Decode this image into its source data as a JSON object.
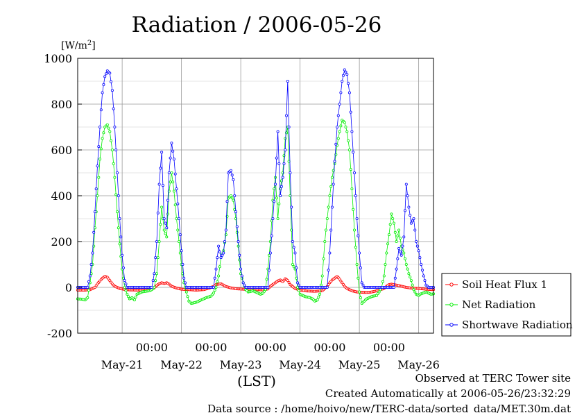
{
  "chart_data": {
    "type": "line",
    "title": "Radiation / 2006-05-26",
    "ylabel": "[W/m2]",
    "ylabel_base": "[W/m",
    "ylabel_sup": "2",
    "ylabel_end": "]",
    "xlabel": "(LST)",
    "ylim": [
      -200,
      1000
    ],
    "yticks": [
      -200,
      0,
      200,
      400,
      600,
      800,
      1000
    ],
    "xlim": [
      0,
      144
    ],
    "x_unit": "hours since 2006-05-20 00:00 LST",
    "grid": true,
    "legend_position": "bottom-right outside plot",
    "x_tick_labels": [
      {
        "x": 36,
        "time": "00:00",
        "day": "May-21"
      },
      {
        "x": 60,
        "time": "00:00",
        "day": "May-22"
      },
      {
        "x": 84,
        "time": "00:00",
        "day": "May-23"
      },
      {
        "x": 108,
        "time": "00:00",
        "day": "May-24"
      },
      {
        "x": 132,
        "time": "00:00",
        "day": "May-25"
      },
      {
        "x": 156,
        "time": "00:00",
        "day": "May-26"
      }
    ],
    "series": [
      {
        "name": "Soil Heat Flux 1",
        "color": "#ff0000",
        "marker": "circle",
        "points": [
          [
            0,
            -12
          ],
          [
            3,
            -12
          ],
          [
            5,
            -10
          ],
          [
            7,
            0
          ],
          [
            8,
            15
          ],
          [
            9,
            28
          ],
          [
            10,
            40
          ],
          [
            11,
            48
          ],
          [
            12,
            44
          ],
          [
            13,
            30
          ],
          [
            14,
            15
          ],
          [
            15,
            5
          ],
          [
            17,
            -5
          ],
          [
            19,
            -9
          ],
          [
            21,
            -11
          ],
          [
            24,
            -12
          ],
          [
            27,
            -12
          ],
          [
            30,
            -9
          ],
          [
            31,
            -2
          ],
          [
            32,
            8
          ],
          [
            33,
            16
          ],
          [
            34,
            20
          ],
          [
            35,
            17
          ],
          [
            36,
            20
          ],
          [
            37,
            14
          ],
          [
            38,
            5
          ],
          [
            40,
            -3
          ],
          [
            42,
            -8
          ],
          [
            45,
            -10
          ],
          [
            48,
            -12
          ],
          [
            51,
            -10
          ],
          [
            53,
            -4
          ],
          [
            55,
            4
          ],
          [
            56,
            12
          ],
          [
            58,
            16
          ],
          [
            59,
            10
          ],
          [
            60,
            4
          ],
          [
            62,
            -2
          ],
          [
            64,
            -6
          ],
          [
            67,
            -8
          ],
          [
            70,
            -10
          ],
          [
            72,
            -10
          ],
          [
            75,
            -11
          ],
          [
            77,
            -7
          ],
          [
            78,
            5
          ],
          [
            80,
            20
          ],
          [
            81,
            28
          ],
          [
            82,
            32
          ],
          [
            83,
            25
          ],
          [
            84,
            38
          ],
          [
            85,
            30
          ],
          [
            86,
            12
          ],
          [
            88,
            -5
          ],
          [
            90,
            -12
          ],
          [
            93,
            -16
          ],
          [
            96,
            -17
          ],
          [
            99,
            -15
          ],
          [
            100,
            -5
          ],
          [
            101,
            5
          ],
          [
            102,
            20
          ],
          [
            103,
            32
          ],
          [
            104,
            40
          ],
          [
            105,
            48
          ],
          [
            106,
            36
          ],
          [
            107,
            20
          ],
          [
            108,
            5
          ],
          [
            109,
            -5
          ],
          [
            111,
            -15
          ],
          [
            113,
            -20
          ],
          [
            116,
            -22
          ],
          [
            118,
            -22
          ],
          [
            120,
            -18
          ],
          [
            122,
            -12
          ],
          [
            124,
            -5
          ],
          [
            125,
            5
          ],
          [
            126,
            12
          ],
          [
            127,
            14
          ],
          [
            129,
            10
          ],
          [
            131,
            5
          ],
          [
            133,
            0
          ],
          [
            135,
            -3
          ],
          [
            138,
            -5
          ],
          [
            141,
            -8
          ],
          [
            144,
            -10
          ]
        ]
      },
      {
        "name": "Net Radiation",
        "color": "#00ee00",
        "marker": "circle",
        "points": [
          [
            0,
            -50
          ],
          [
            2,
            -52
          ],
          [
            3,
            -55
          ],
          [
            4,
            -45
          ],
          [
            5,
            20
          ],
          [
            6,
            100
          ],
          [
            7,
            260
          ],
          [
            8,
            400
          ],
          [
            9,
            560
          ],
          [
            10,
            650
          ],
          [
            11,
            700
          ],
          [
            12,
            710
          ],
          [
            13,
            680
          ],
          [
            14,
            600
          ],
          [
            15,
            480
          ],
          [
            16,
            330
          ],
          [
            17,
            190
          ],
          [
            18,
            80
          ],
          [
            19,
            0
          ],
          [
            20,
            -30
          ],
          [
            21,
            -50
          ],
          [
            22,
            -45
          ],
          [
            23,
            -55
          ],
          [
            24,
            -30
          ],
          [
            26,
            -20
          ],
          [
            27,
            -18
          ],
          [
            29,
            -15
          ],
          [
            30,
            -10
          ],
          [
            31,
            0
          ],
          [
            32,
            60
          ],
          [
            33,
            200
          ],
          [
            34,
            350
          ],
          [
            35,
            250
          ],
          [
            36,
            220
          ],
          [
            37,
            420
          ],
          [
            38,
            500
          ],
          [
            39,
            420
          ],
          [
            40,
            300
          ],
          [
            41,
            200
          ],
          [
            42,
            100
          ],
          [
            43,
            20
          ],
          [
            44,
            -20
          ],
          [
            45,
            -60
          ],
          [
            46,
            -70
          ],
          [
            48,
            -65
          ],
          [
            50,
            -55
          ],
          [
            52,
            -45
          ],
          [
            54,
            -38
          ],
          [
            55,
            -25
          ],
          [
            56,
            0
          ],
          [
            57,
            50
          ],
          [
            58,
            130
          ],
          [
            59,
            160
          ],
          [
            60,
            230
          ],
          [
            61,
            390
          ],
          [
            62,
            400
          ],
          [
            63,
            380
          ],
          [
            64,
            300
          ],
          [
            65,
            180
          ],
          [
            66,
            60
          ],
          [
            67,
            20
          ],
          [
            68,
            -10
          ],
          [
            69,
            -20
          ],
          [
            71,
            -15
          ],
          [
            72,
            -20
          ],
          [
            74,
            -30
          ],
          [
            75,
            -25
          ],
          [
            76,
            -10
          ],
          [
            77,
            80
          ],
          [
            78,
            200
          ],
          [
            79,
            380
          ],
          [
            80,
            480
          ],
          [
            81,
            300
          ],
          [
            82,
            430
          ],
          [
            83,
            500
          ],
          [
            84,
            650
          ],
          [
            85,
            700
          ],
          [
            86,
            400
          ],
          [
            87,
            100
          ],
          [
            88,
            80
          ],
          [
            89,
            0
          ],
          [
            90,
            -30
          ],
          [
            92,
            -40
          ],
          [
            94,
            -45
          ],
          [
            95,
            -50
          ],
          [
            96,
            -60
          ],
          [
            97,
            -55
          ],
          [
            98,
            -30
          ],
          [
            99,
            50
          ],
          [
            100,
            200
          ],
          [
            101,
            300
          ],
          [
            102,
            400
          ],
          [
            103,
            480
          ],
          [
            104,
            540
          ],
          [
            105,
            620
          ],
          [
            106,
            680
          ],
          [
            107,
            730
          ],
          [
            108,
            720
          ],
          [
            109,
            680
          ],
          [
            110,
            600
          ],
          [
            111,
            430
          ],
          [
            112,
            250
          ],
          [
            113,
            100
          ],
          [
            114,
            -20
          ],
          [
            115,
            -70
          ],
          [
            116,
            -60
          ],
          [
            117,
            -50
          ],
          [
            119,
            -40
          ],
          [
            121,
            -35
          ],
          [
            122,
            -20
          ],
          [
            123,
            0
          ],
          [
            124,
            50
          ],
          [
            125,
            150
          ],
          [
            126,
            230
          ],
          [
            127,
            320
          ],
          [
            128,
            280
          ],
          [
            129,
            200
          ],
          [
            130,
            250
          ],
          [
            131,
            180
          ],
          [
            132,
            150
          ],
          [
            133,
            100
          ],
          [
            134,
            60
          ],
          [
            135,
            30
          ],
          [
            136,
            -10
          ],
          [
            137,
            -30
          ],
          [
            138,
            -35
          ],
          [
            139,
            -28
          ],
          [
            141,
            -20
          ],
          [
            142,
            -25
          ],
          [
            143,
            -30
          ],
          [
            144,
            -28
          ]
        ]
      },
      {
        "name": "Shortwave Radiation",
        "color": "#0000ff",
        "marker": "circle",
        "points": [
          [
            0,
            0
          ],
          [
            4,
            0
          ],
          [
            5,
            50
          ],
          [
            6,
            150
          ],
          [
            7,
            330
          ],
          [
            8,
            530
          ],
          [
            9,
            700
          ],
          [
            10,
            850
          ],
          [
            11,
            920
          ],
          [
            12,
            945
          ],
          [
            13,
            935
          ],
          [
            14,
            860
          ],
          [
            15,
            700
          ],
          [
            16,
            500
          ],
          [
            17,
            300
          ],
          [
            18,
            140
          ],
          [
            19,
            30
          ],
          [
            20,
            0
          ],
          [
            30,
            0
          ],
          [
            31,
            60
          ],
          [
            32,
            200
          ],
          [
            33,
            450
          ],
          [
            34,
            590
          ],
          [
            35,
            300
          ],
          [
            36,
            260
          ],
          [
            37,
            500
          ],
          [
            38,
            630
          ],
          [
            39,
            560
          ],
          [
            40,
            430
          ],
          [
            41,
            300
          ],
          [
            42,
            160
          ],
          [
            43,
            40
          ],
          [
            44,
            0
          ],
          [
            55,
            0
          ],
          [
            56,
            80
          ],
          [
            57,
            180
          ],
          [
            58,
            130
          ],
          [
            59,
            150
          ],
          [
            60,
            250
          ],
          [
            61,
            500
          ],
          [
            62,
            510
          ],
          [
            63,
            470
          ],
          [
            64,
            330
          ],
          [
            65,
            200
          ],
          [
            66,
            80
          ],
          [
            67,
            20
          ],
          [
            68,
            0
          ],
          [
            77,
            0
          ],
          [
            78,
            150
          ],
          [
            79,
            300
          ],
          [
            80,
            450
          ],
          [
            81,
            680
          ],
          [
            82,
            400
          ],
          [
            83,
            480
          ],
          [
            84,
            600
          ],
          [
            85,
            900
          ],
          [
            86,
            500
          ],
          [
            87,
            200
          ],
          [
            88,
            150
          ],
          [
            89,
            20
          ],
          [
            90,
            0
          ],
          [
            101,
            0
          ],
          [
            102,
            150
          ],
          [
            103,
            350
          ],
          [
            104,
            550
          ],
          [
            105,
            700
          ],
          [
            106,
            800
          ],
          [
            107,
            900
          ],
          [
            108,
            950
          ],
          [
            109,
            930
          ],
          [
            110,
            850
          ],
          [
            111,
            680
          ],
          [
            112,
            500
          ],
          [
            113,
            300
          ],
          [
            114,
            150
          ],
          [
            115,
            20
          ],
          [
            116,
            0
          ],
          [
            128,
            0
          ],
          [
            129,
            80
          ],
          [
            130,
            170
          ],
          [
            131,
            140
          ],
          [
            132,
            220
          ],
          [
            133,
            450
          ],
          [
            134,
            350
          ],
          [
            135,
            280
          ],
          [
            136,
            300
          ],
          [
            137,
            200
          ],
          [
            138,
            160
          ],
          [
            139,
            100
          ],
          [
            140,
            50
          ],
          [
            141,
            10
          ],
          [
            142,
            0
          ],
          [
            144,
            0
          ]
        ]
      }
    ],
    "footer": [
      "Observed at TERC Tower site",
      "Created Automatically at 2006-05-26/23:32:29",
      "Data source : /home/hoivo/new/TERC-data/sorted_data/MET.30m.dat"
    ]
  }
}
